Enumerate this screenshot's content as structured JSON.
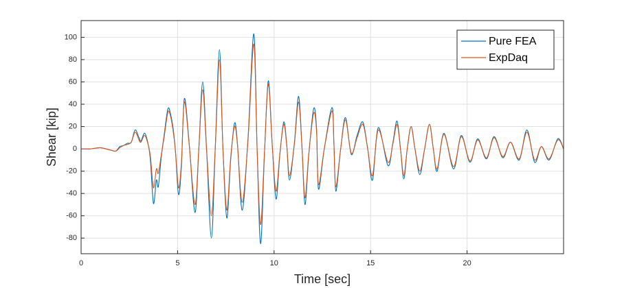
{
  "chart_data": {
    "type": "line",
    "x_label": "Time [sec]",
    "y_label": "Shear [kip]",
    "x": [
      0,
      0.5,
      1.0,
      1.5,
      1.8,
      2.0,
      2.2,
      2.4,
      2.6,
      2.8,
      3.0,
      3.1,
      3.3,
      3.5,
      3.6,
      3.75,
      3.9,
      4.0,
      4.15,
      4.3,
      4.5,
      4.65,
      4.8,
      4.9,
      5.05,
      5.2,
      5.35,
      5.6,
      5.9,
      6.1,
      6.3,
      6.5,
      6.75,
      6.95,
      7.17,
      7.35,
      7.55,
      7.75,
      7.95,
      8.1,
      8.35,
      8.65,
      8.95,
      9.12,
      9.3,
      9.5,
      9.7,
      9.9,
      10.1,
      10.3,
      10.5,
      10.65,
      10.8,
      11.05,
      11.27,
      11.45,
      11.6,
      11.8,
      12.05,
      12.2,
      12.3,
      12.6,
      13.0,
      13.1,
      13.2,
      13.45,
      13.7,
      14.0,
      14.3,
      14.6,
      14.85,
      15.1,
      15.4,
      15.9,
      16.15,
      16.37,
      16.55,
      16.72,
      16.9,
      17.1,
      17.3,
      17.55,
      17.8,
      18.05,
      18.25,
      18.45,
      18.8,
      19.3,
      19.7,
      20.15,
      20.55,
      21.0,
      21.4,
      21.85,
      22.25,
      22.7,
      23.1,
      23.5,
      23.85,
      24.25,
      24.7,
      25.0
    ],
    "series": [
      {
        "name": "Pure FEA",
        "color": "#0072bd",
        "values": [
          0,
          0,
          1,
          -1,
          -2,
          2,
          3,
          5,
          6,
          17,
          10,
          7,
          14,
          2,
          -12,
          -49,
          -28,
          -34,
          -8,
          12,
          36,
          30,
          14,
          -5,
          -41,
          -15,
          45,
          5,
          -57,
          0,
          60,
          0,
          -80,
          0,
          89,
          0,
          -62,
          -10,
          23,
          5,
          -55,
          10,
          103,
          0,
          -85,
          -5,
          61,
          5,
          -45,
          -5,
          24,
          5,
          -28,
          5,
          47,
          0,
          -50,
          -5,
          36,
          18,
          -36,
          0,
          37,
          5,
          -38,
          0,
          28,
          -5,
          12,
          24,
          0,
          -28,
          19,
          -15,
          5,
          25,
          0,
          -27,
          0,
          20,
          0,
          -23,
          0,
          22,
          0,
          -20,
          14,
          -18,
          12,
          -12,
          9,
          -9,
          11,
          -8,
          6,
          -10,
          17,
          -12,
          2,
          -10,
          9,
          0
        ]
      },
      {
        "name": "ExpDaq",
        "color": "#d95319",
        "values": [
          0,
          0,
          1,
          -1,
          -2,
          1,
          3,
          4,
          6,
          15,
          8,
          6,
          12,
          2,
          -8,
          -35,
          -18,
          -22,
          -6,
          10,
          33,
          28,
          12,
          -4,
          -35,
          -12,
          42,
          4,
          -50,
          0,
          53,
          0,
          -60,
          0,
          80,
          0,
          -55,
          -8,
          20,
          4,
          -48,
          8,
          94,
          0,
          -68,
          -4,
          58,
          4,
          -38,
          -4,
          22,
          4,
          -24,
          4,
          42,
          0,
          -44,
          -4,
          32,
          16,
          -32,
          0,
          34,
          4,
          -34,
          0,
          26,
          -4,
          10,
          22,
          0,
          -24,
          17,
          -12,
          4,
          22,
          0,
          -24,
          0,
          20,
          0,
          -20,
          0,
          22,
          0,
          -18,
          13,
          -16,
          11,
          -11,
          8,
          -8,
          10,
          -7,
          6,
          -9,
          15,
          -10,
          2,
          -9,
          8,
          0
        ]
      }
    ],
    "xlim": [
      0,
      25
    ],
    "xticks": [
      0,
      5,
      10,
      15,
      20
    ],
    "ylim": [
      -94,
      115
    ],
    "yticks": [
      -80,
      -60,
      -40,
      -20,
      0,
      20,
      40,
      60,
      80,
      100
    ],
    "grid": true,
    "legend": "upper right"
  }
}
